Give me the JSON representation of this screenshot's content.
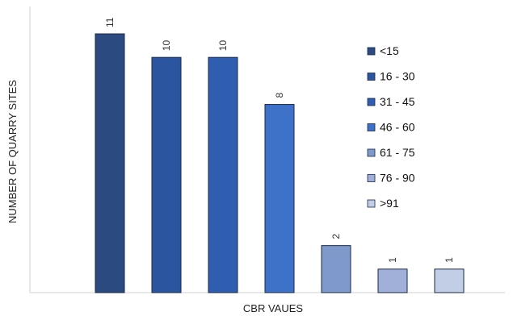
{
  "chart_data": {
    "type": "bar",
    "xlabel": "CBR VAUES",
    "ylabel": "NUMBER OF QUARRY SITES",
    "ylim": [
      0,
      11
    ],
    "grid": false,
    "legend_position": "right",
    "data_labels_rotated": true,
    "series": [
      {
        "name": "<15",
        "values": [
          11
        ],
        "color": "#2b4a80"
      },
      {
        "name": "16 - 30",
        "values": [
          10
        ],
        "color": "#2c55a0"
      },
      {
        "name": "31 -  45",
        "values": [
          10
        ],
        "color": "#2f5eb0"
      },
      {
        "name": "46 - 60",
        "values": [
          8
        ],
        "color": "#3d72c8"
      },
      {
        "name": "61 - 75",
        "values": [
          2
        ],
        "color": "#7f99cc"
      },
      {
        "name": "76 - 90",
        "values": [
          1
        ],
        "color": "#a0b0d8"
      },
      {
        "name": ">91",
        "values": [
          1
        ],
        "color": "#c2cde6"
      }
    ]
  }
}
